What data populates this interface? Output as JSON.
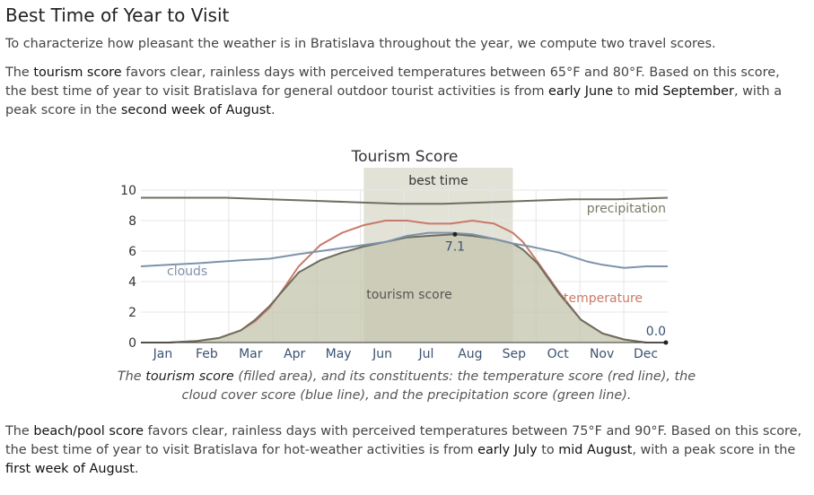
{
  "header": {
    "title": "Best Time of Year to Visit"
  },
  "intro": "To characterize how pleasant the weather is in Bratislava throughout the year, we compute two travel scores.",
  "tourism_paragraph": {
    "t1": "The ",
    "b1": "tourism score",
    "t2": " favors clear, rainless days with perceived temperatures between 65°F and 80°F. Based on this score, the best time of year to visit Bratislava for general outdoor tourist activities is from ",
    "b2": "early June",
    "t3": " to ",
    "b3": "mid September",
    "t4": ", with a peak score in the ",
    "b4": "second week of August",
    "t5": "."
  },
  "caption": {
    "t1": "The ",
    "b1": "tourism score",
    "t2": " (filled area), and its constituents: the temperature score (red line), the cloud cover score (blue line), and the precipitation score (green line)."
  },
  "beach_paragraph": {
    "t1": "The ",
    "b1": "beach/pool score",
    "t2": " favors clear, rainless days with perceived temperatures between 75°F and 90°F. Based on this score, the best time of year to visit Bratislava for hot-weather activities is from ",
    "b2": "early July",
    "t3": " to ",
    "b3": "mid August",
    "t4": ", with a peak score in the ",
    "b4": "first week of August",
    "t5": "."
  },
  "colors": {
    "area_fill": "#c4c4ae",
    "area_line": "#6d6d5e",
    "temperature": "#c87a68",
    "clouds": "#7e93aa",
    "precipitation": "#6f6f60",
    "best_time_band": "#ddddd0",
    "grid": "#e6e6e6",
    "axis_text": "#3b5272"
  },
  "chart_data": {
    "type": "area",
    "title": "Tourism Score",
    "x_ticks": [
      "Jan",
      "Feb",
      "Mar",
      "Apr",
      "May",
      "Jun",
      "Jul",
      "Aug",
      "Sep",
      "Oct",
      "Nov",
      "Dec"
    ],
    "y_ticks": [
      "0",
      "2",
      "4",
      "6",
      "8",
      "10"
    ],
    "ylim": [
      0,
      10
    ],
    "x_unit": "day of year",
    "xlim": [
      1,
      365
    ],
    "grid": true,
    "best_time": {
      "label": "best time",
      "start_day": 155,
      "end_day": 258
    },
    "series": [
      {
        "name": "tourism score",
        "kind": "area",
        "x": [
          1,
          20,
          40,
          55,
          70,
          80,
          90,
          100,
          110,
          125,
          140,
          155,
          170,
          185,
          200,
          218,
          230,
          245,
          258,
          265,
          275,
          290,
          305,
          320,
          335,
          350,
          365
        ],
        "y": [
          0.0,
          0.0,
          0.1,
          0.3,
          0.8,
          1.5,
          2.4,
          3.5,
          4.6,
          5.4,
          5.9,
          6.3,
          6.6,
          6.9,
          7.0,
          7.1,
          7.0,
          6.8,
          6.5,
          6.1,
          5.2,
          3.2,
          1.5,
          0.6,
          0.2,
          0.0,
          0.0
        ]
      },
      {
        "name": "temperature",
        "kind": "line",
        "label_text": "temperature",
        "x": [
          1,
          20,
          40,
          55,
          70,
          80,
          90,
          100,
          110,
          125,
          140,
          155,
          170,
          185,
          200,
          215,
          230,
          245,
          258,
          265,
          275,
          290,
          305,
          320,
          335,
          350,
          365
        ],
        "y": [
          0.0,
          0.0,
          0.1,
          0.3,
          0.8,
          1.4,
          2.3,
          3.6,
          5.0,
          6.4,
          7.2,
          7.7,
          8.0,
          8.0,
          7.8,
          7.8,
          8.0,
          7.8,
          7.2,
          6.6,
          5.3,
          3.3,
          1.5,
          0.6,
          0.2,
          0.0,
          0.0
        ]
      },
      {
        "name": "clouds",
        "kind": "line",
        "label_text": "clouds",
        "x": [
          1,
          20,
          40,
          55,
          70,
          90,
          110,
          125,
          140,
          155,
          170,
          185,
          200,
          215,
          230,
          245,
          258,
          270,
          280,
          290,
          300,
          310,
          320,
          335,
          350,
          365
        ],
        "y": [
          5.0,
          5.1,
          5.2,
          5.3,
          5.4,
          5.5,
          5.8,
          6.0,
          6.2,
          6.4,
          6.6,
          7.0,
          7.2,
          7.2,
          7.1,
          6.8,
          6.5,
          6.3,
          6.1,
          5.9,
          5.6,
          5.3,
          5.1,
          4.9,
          5.0,
          5.0
        ]
      },
      {
        "name": "precipitation",
        "kind": "line",
        "label_text": "precipitation",
        "x": [
          1,
          30,
          60,
          90,
          120,
          150,
          180,
          210,
          240,
          270,
          300,
          330,
          365
        ],
        "y": [
          9.5,
          9.5,
          9.5,
          9.4,
          9.3,
          9.2,
          9.1,
          9.1,
          9.2,
          9.3,
          9.4,
          9.4,
          9.5
        ]
      }
    ],
    "annotations": [
      {
        "label": "7.1",
        "x": 218,
        "y": 7.1
      },
      {
        "label": "0.0",
        "x": 360,
        "y": 0.0
      }
    ],
    "inner_label": "tourism score"
  }
}
